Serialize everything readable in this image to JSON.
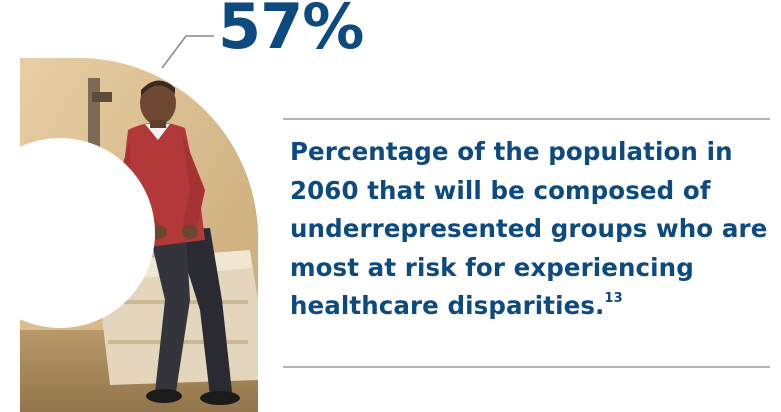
{
  "stat": {
    "value": "57%"
  },
  "description": {
    "text": "Percentage of the population in 2060 that will be composed of underrepresented groups who are most at risk for experiencing healthcare disparities.",
    "footnote": "13"
  },
  "colors": {
    "brand_blue": "#0d4a80",
    "rule_gray": "#b4b4b4",
    "photo_warm": "#d8b98c"
  },
  "photo": {
    "icon": "photo-man-sitting-on-exam-table"
  }
}
